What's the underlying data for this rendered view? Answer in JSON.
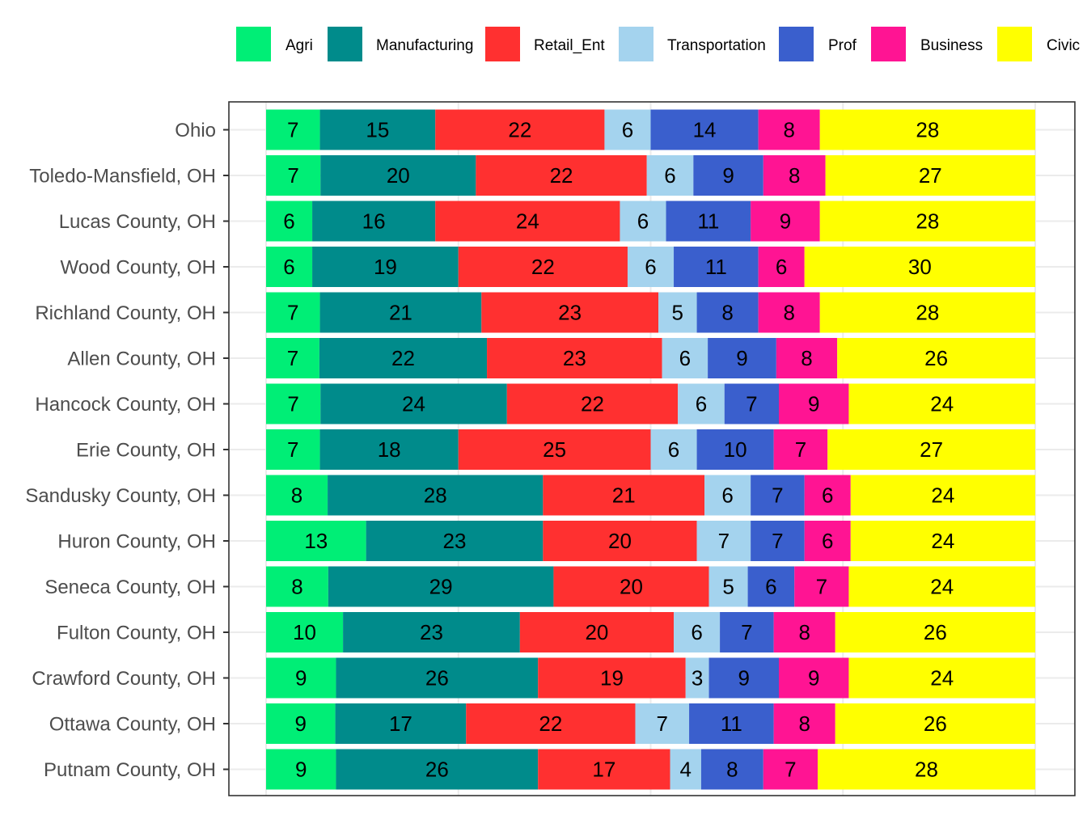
{
  "chart_data": {
    "type": "bar",
    "orientation": "horizontal",
    "stacked": true,
    "legend_position": "top",
    "grid": true,
    "xlim": [
      0,
      100
    ],
    "categories": [
      "Ohio",
      "Toledo-Mansfield, OH",
      "Lucas County, OH",
      "Wood County, OH",
      "Richland County, OH",
      "Allen County, OH",
      "Hancock County, OH",
      "Erie County, OH",
      "Sandusky County, OH",
      "Huron County, OH",
      "Seneca County, OH",
      "Fulton County, OH",
      "Crawford County, OH",
      "Ottawa County, OH",
      "Putnam County, OH"
    ],
    "series": [
      {
        "name": "Agri",
        "color": "#00EE76",
        "values": [
          7,
          7,
          6,
          6,
          7,
          7,
          7,
          7,
          8,
          13,
          8,
          10,
          9,
          9,
          9
        ]
      },
      {
        "name": "Manufacturing",
        "color": "#008B8B",
        "values": [
          15,
          20,
          16,
          19,
          21,
          22,
          24,
          18,
          28,
          23,
          29,
          23,
          26,
          17,
          26
        ]
      },
      {
        "name": "Retail_Ent",
        "color": "#FF3030",
        "values": [
          22,
          22,
          24,
          22,
          23,
          23,
          22,
          25,
          21,
          20,
          20,
          20,
          19,
          22,
          17
        ]
      },
      {
        "name": "Transportation",
        "color": "#A4D3EE",
        "values": [
          6,
          6,
          6,
          6,
          5,
          6,
          6,
          6,
          6,
          7,
          5,
          6,
          3,
          7,
          4
        ]
      },
      {
        "name": "Prof",
        "color": "#3A5FCD",
        "values": [
          14,
          9,
          11,
          11,
          8,
          9,
          7,
          10,
          7,
          7,
          6,
          7,
          9,
          11,
          8
        ]
      },
      {
        "name": "Business",
        "color": "#FF1493",
        "values": [
          8,
          8,
          9,
          6,
          8,
          8,
          9,
          7,
          6,
          6,
          7,
          8,
          9,
          8,
          7
        ]
      },
      {
        "name": "Civic",
        "color": "#FFFF00",
        "values": [
          28,
          27,
          28,
          30,
          28,
          26,
          24,
          27,
          24,
          24,
          24,
          26,
          24,
          26,
          28
        ]
      }
    ],
    "title": "",
    "xlabel": "",
    "ylabel": ""
  }
}
